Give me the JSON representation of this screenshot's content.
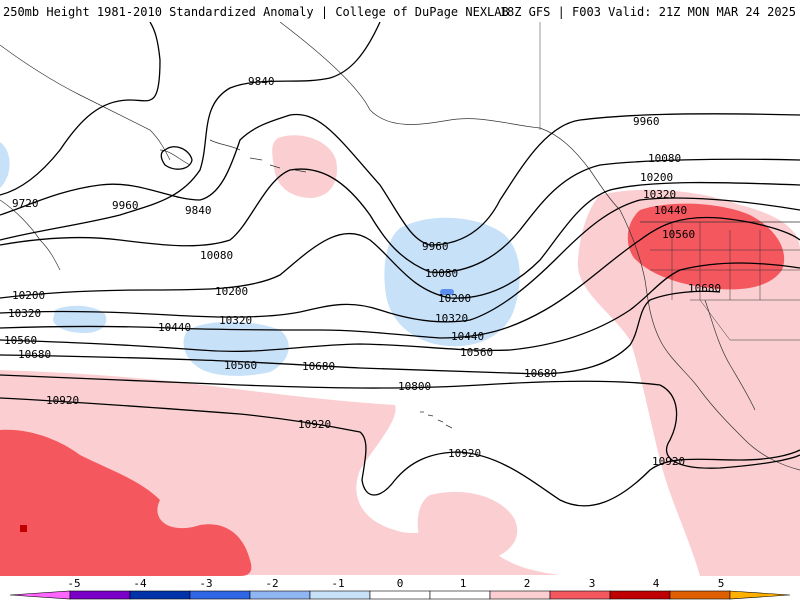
{
  "header": {
    "title_left": "250mb Height 1981-2010 Standardized Anomaly | College of DuPage NEXLAB",
    "title_right": "18Z GFS | F003 Valid: 21Z MON MAR 24 2025"
  },
  "colors": {
    "anom_pos1": "#fbcfd1",
    "anom_pos2": "#f4585e",
    "anom_pos3": "#c00000",
    "anom_neg1": "#c7e1f9",
    "anom_neg2": "#5a8ef0",
    "anom_neg3": "#1d3fc5",
    "contour": "#000000",
    "coast": "#333333"
  },
  "contours": {
    "labels": [
      "9720",
      "9840",
      "9840",
      "9960",
      "9960",
      "9960",
      "10080",
      "10080",
      "10080",
      "10200",
      "10200",
      "10200",
      "10200",
      "10320",
      "10320",
      "10320",
      "10320",
      "10440",
      "10440",
      "10440",
      "10560",
      "10560",
      "10560",
      "10560",
      "10680",
      "10680",
      "10680",
      "10680",
      "10800",
      "10920",
      "10920",
      "10920",
      "10920"
    ]
  },
  "colorbar": {
    "ticks": [
      "-5",
      "-4",
      "-3",
      "-2",
      "-1",
      "0",
      "1",
      "2",
      "3",
      "4",
      "5"
    ],
    "colors": [
      "#ff66ff",
      "#7a00c8",
      "#0033aa",
      "#2e66e6",
      "#8fb6f2",
      "#c7e1f9",
      "#ffffff",
      "#ffffff",
      "#fbcfd1",
      "#f4585e",
      "#c00000",
      "#e06000",
      "#ffb000"
    ]
  }
}
